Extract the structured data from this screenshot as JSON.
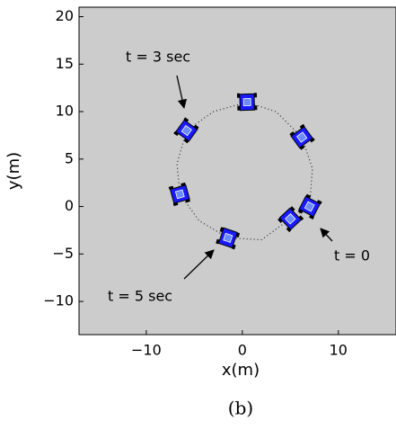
{
  "chart_data": {
    "type": "line",
    "xlabel": "x(m)",
    "ylabel": "y(m)",
    "caption": "(b)",
    "xlim": [
      -17,
      16
    ],
    "ylim": [
      -13.5,
      21
    ],
    "xticks": [
      {
        "value": -10,
        "label": "−10"
      },
      0,
      10
    ],
    "yticks": [
      {
        "value": -10,
        "label": "−10"
      },
      {
        "value": -5,
        "label": "−5"
      },
      0,
      5,
      10,
      15,
      20
    ],
    "background": "#cccccc",
    "series": [
      {
        "color": "#222222",
        "style": "dotted",
        "x": [
          7,
          7.3,
          6.2,
          3.5,
          0.5,
          -3,
          -5.8,
          -6.8,
          -6.5,
          -4.5,
          -1.5,
          2,
          5,
          7
        ],
        "values": [
          0,
          4,
          7.3,
          10,
          11,
          10,
          8,
          4.5,
          1.3,
          -1.5,
          -3.3,
          -3.5,
          -1.3,
          0
        ]
      },
      {
        "color": "#1a1aff",
        "style": "robot",
        "x": [
          7,
          6.2,
          0.5,
          -5.8,
          -6.5,
          -1.5,
          5
        ],
        "values": [
          0,
          7.3,
          11,
          8,
          1.3,
          -3.3,
          -1.3
        ]
      }
    ],
    "annotations": [
      "t = 3 sec",
      "t = 0",
      "t = 5 sec"
    ]
  }
}
